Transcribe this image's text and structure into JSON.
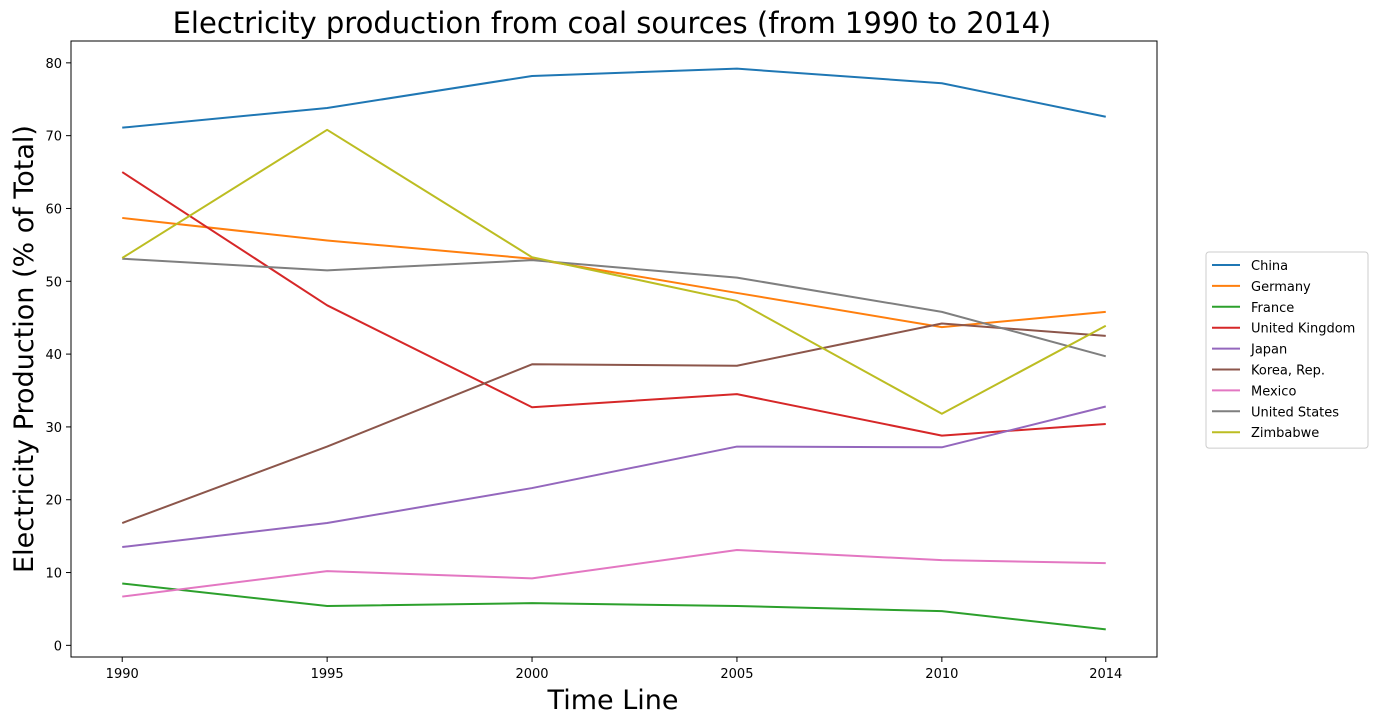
{
  "chart_data": {
    "type": "line",
    "title": "Electricity production from coal sources (from 1990 to 2014)",
    "xlabel": "Time Line",
    "ylabel": "Electricity Production (% of Total)",
    "x": [
      1990,
      1995,
      2000,
      2005,
      2010,
      2014
    ],
    "x_ticks": [
      "1990",
      "1995",
      "2000",
      "2005",
      "2010",
      "2014"
    ],
    "xlim": [
      1988.75,
      2015.25
    ],
    "y_ticks": [
      "0",
      "10",
      "20",
      "30",
      "40",
      "50",
      "60",
      "70",
      "80"
    ],
    "ylim": [
      -1.6,
      83.0
    ],
    "grid": false,
    "legend_position": "center right, outside plot",
    "series": [
      {
        "name": "China",
        "color": "#1f77b4",
        "values": [
          71.1,
          73.8,
          78.2,
          79.2,
          77.2,
          72.6
        ]
      },
      {
        "name": "Germany",
        "color": "#ff7f0e",
        "values": [
          58.7,
          55.6,
          53.1,
          48.4,
          43.7,
          45.8
        ]
      },
      {
        "name": "France",
        "color": "#2ca02c",
        "values": [
          8.5,
          5.4,
          5.8,
          5.4,
          4.7,
          2.2
        ]
      },
      {
        "name": "United Kingdom",
        "color": "#d62728",
        "values": [
          65.0,
          46.7,
          32.7,
          34.5,
          28.8,
          30.4
        ]
      },
      {
        "name": "Japan",
        "color": "#9467bd",
        "values": [
          13.5,
          16.8,
          21.6,
          27.3,
          27.2,
          32.8
        ]
      },
      {
        "name": "Korea, Rep.",
        "color": "#8c564b",
        "values": [
          16.8,
          27.3,
          38.6,
          38.4,
          44.2,
          42.5
        ]
      },
      {
        "name": "Mexico",
        "color": "#e377c2",
        "values": [
          6.7,
          10.2,
          9.2,
          13.1,
          11.7,
          11.3
        ]
      },
      {
        "name": "United States",
        "color": "#7f7f7f",
        "values": [
          53.1,
          51.5,
          52.9,
          50.5,
          45.8,
          39.7
        ]
      },
      {
        "name": "Zimbabwe",
        "color": "#bcbd22",
        "values": [
          53.2,
          70.8,
          53.3,
          47.3,
          31.8,
          43.9
        ]
      }
    ]
  }
}
